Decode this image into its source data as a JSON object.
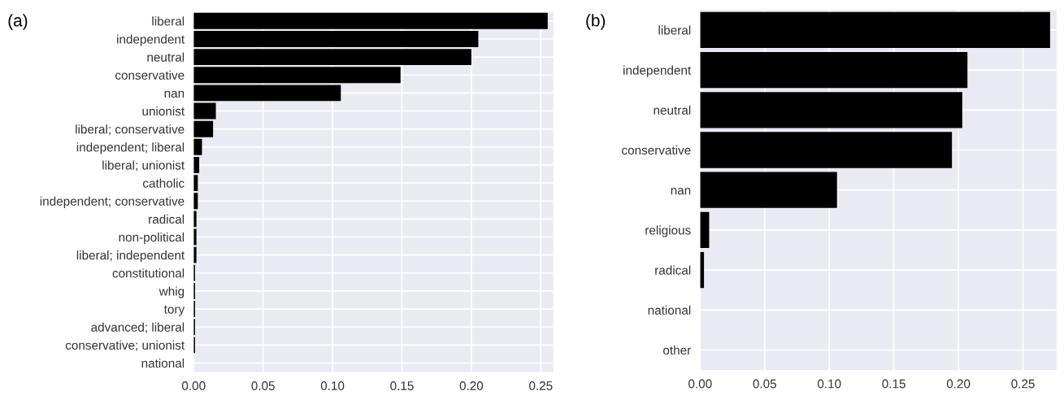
{
  "chart_data": [
    {
      "type": "bar",
      "title": "(a)",
      "orientation": "horizontal",
      "color": "#000000",
      "grid": true,
      "categories": [
        "liberal",
        "independent",
        "neutral",
        "conservative",
        "nan",
        "unionist",
        "liberal; conservative",
        "independent; liberal",
        "liberal; unionist",
        "catholic",
        "independent; conservative",
        "radical",
        "non-political",
        "liberal; independent",
        "constitutional",
        "whig",
        "tory",
        "advanced; liberal",
        "conservative; unionist",
        "national"
      ],
      "values": [
        0.255,
        0.205,
        0.2,
        0.149,
        0.106,
        0.016,
        0.014,
        0.006,
        0.004,
        0.003,
        0.003,
        0.002,
        0.002,
        0.002,
        0.001,
        0.001,
        0.001,
        0.001,
        0.001,
        null
      ],
      "xlim": [
        0,
        0.259
      ],
      "xticks": [
        {
          "value": 0,
          "label": "0.00"
        },
        {
          "value": 0.05,
          "label": "0.05"
        },
        {
          "value": 0.1,
          "label": "0.10"
        },
        {
          "value": 0.15,
          "label": "0.15"
        },
        {
          "value": 0.2,
          "label": "0.20"
        },
        {
          "value": 0.25,
          "label": "0.25"
        }
      ]
    },
    {
      "type": "bar",
      "title": "(b)",
      "orientation": "horizontal",
      "color": "#000000",
      "grid": true,
      "categories": [
        "liberal",
        "independent",
        "neutral",
        "conservative",
        "nan",
        "religious",
        "radical",
        "national",
        "other"
      ],
      "values": [
        0.271,
        0.207,
        0.203,
        0.195,
        0.106,
        0.007,
        0.003,
        null,
        null
      ],
      "xlim": [
        0,
        0.276
      ],
      "xticks": [
        {
          "value": 0,
          "label": "0.00"
        },
        {
          "value": 0.05,
          "label": "0.05"
        },
        {
          "value": 0.1,
          "label": "0.10"
        },
        {
          "value": 0.15,
          "label": "0.15"
        },
        {
          "value": 0.2,
          "label": "0.20"
        },
        {
          "value": 0.25,
          "label": "0.25"
        }
      ]
    }
  ]
}
